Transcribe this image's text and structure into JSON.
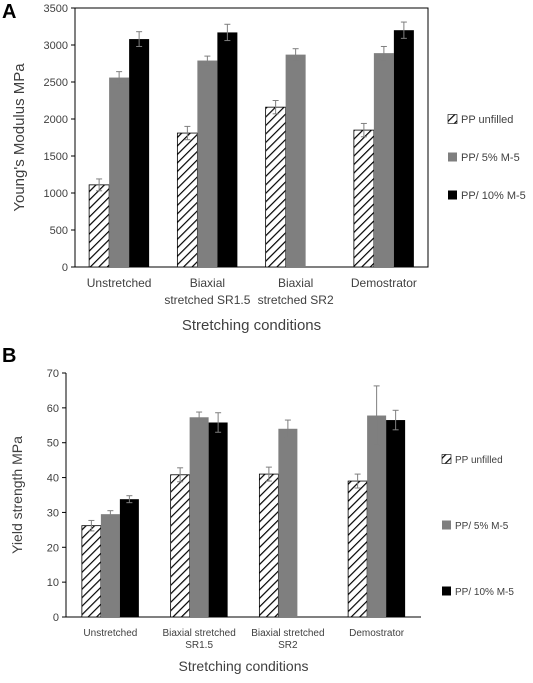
{
  "chart_data": [
    {
      "panel": "A",
      "type": "bar",
      "categories": [
        [
          "Unstretched"
        ],
        [
          "Biaxial",
          "stretched SR1.5"
        ],
        [
          "Biaxial",
          "stretched SR2"
        ],
        [
          "Demostrator"
        ]
      ],
      "series": [
        {
          "name": "PP unfilled",
          "values": [
            1110,
            1810,
            2160,
            1850
          ],
          "errors": [
            80,
            90,
            90,
            90
          ]
        },
        {
          "name": "PP/ 5% M-5",
          "values": [
            2560,
            2790,
            2870,
            2890
          ],
          "errors": [
            80,
            60,
            80,
            90
          ]
        },
        {
          "name": "PP/ 10% M-5",
          "values": [
            3080,
            3170,
            null,
            3200
          ],
          "errors": [
            100,
            110,
            null,
            110
          ]
        }
      ],
      "xlabel": "Stretching conditions",
      "ylabel": "Young's Modulus MPa",
      "ylim": [
        0,
        3500
      ],
      "yticks": [
        0,
        500,
        1000,
        1500,
        2000,
        2500,
        3000,
        3500
      ],
      "grid": false,
      "legend_position": "right"
    },
    {
      "panel": "B",
      "type": "bar",
      "categories": [
        [
          "Unstretched"
        ],
        [
          "Biaxial stretched",
          "SR1.5"
        ],
        [
          "Biaxial stretched",
          "SR2"
        ],
        [
          "Demostrator"
        ]
      ],
      "series": [
        {
          "name": "PP unfilled",
          "values": [
            26.2,
            40.8,
            41.0,
            39.0
          ],
          "errors": [
            1.5,
            2.0,
            2.0,
            2.0
          ]
        },
        {
          "name": "PP/ 5% M-5",
          "values": [
            29.5,
            57.3,
            54.0,
            57.8
          ],
          "errors": [
            1.0,
            1.5,
            2.5,
            8.5
          ]
        },
        {
          "name": "PP/ 10% M-5",
          "values": [
            33.8,
            55.8,
            null,
            56.5
          ],
          "errors": [
            1.0,
            2.8,
            null,
            2.8
          ]
        }
      ],
      "xlabel": "Stretching conditions",
      "ylabel": "Yield strength MPa",
      "ylim": [
        0,
        70
      ],
      "yticks": [
        0,
        10,
        20,
        30,
        40,
        50,
        60,
        70
      ],
      "grid": false,
      "legend_position": "right"
    }
  ],
  "series_colors": [
    "hatched-white",
    "#7f7f7f",
    "#000000"
  ]
}
